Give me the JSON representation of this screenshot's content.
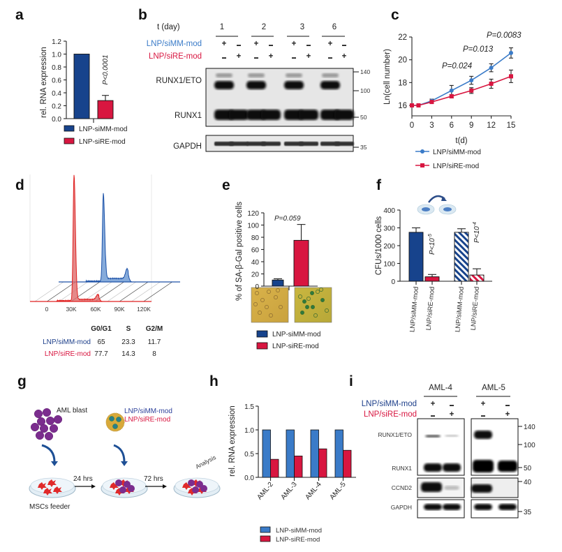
{
  "panel_labels": {
    "a": "a",
    "b": "b",
    "c": "c",
    "d": "d",
    "e": "e",
    "f": "f",
    "g": "g",
    "h": "h",
    "i": "i"
  },
  "colors": {
    "siMM_dark": "#17438c",
    "siMM_light": "#3a7bc8",
    "siRE": "#d81640"
  },
  "chart_data": [
    {
      "panel": "a",
      "type": "bar",
      "categories": [
        "LNP-siMM-mod",
        "LNP-siRE-mod"
      ],
      "values": [
        1.0,
        0.28
      ],
      "errors": [
        0,
        0.08
      ],
      "ylabel": "rel. RNA expression",
      "ylim": [
        0,
        1.2
      ],
      "yticks": [
        "0.0",
        "0.2",
        "0.4",
        "0.6",
        "0.8",
        "1.0",
        "1.2"
      ],
      "annotation": "P<0.0001",
      "legend": [
        "LNP-siMM-mod",
        "LNP-siRE-mod"
      ],
      "legend_placement": "bottom"
    },
    {
      "panel": "c",
      "type": "line",
      "x": [
        0,
        1,
        3,
        6,
        9,
        12,
        15
      ],
      "xticks": [
        "0",
        "3",
        "6",
        "9",
        "12",
        "15"
      ],
      "yticks": [
        "16",
        "18",
        "20",
        "22"
      ],
      "xlabel": "t(d)",
      "ylabel": "Ln(cell number)",
      "ylim": [
        15.1,
        22
      ],
      "xlim": [
        0,
        15
      ],
      "series": [
        {
          "name": "LNP/siMM-mod",
          "values": [
            16.0,
            16.0,
            16.4,
            17.3,
            18.2,
            19.3,
            20.6
          ],
          "errors": [
            0.05,
            0.05,
            0.15,
            0.45,
            0.35,
            0.35,
            0.45
          ]
        },
        {
          "name": "LNP/siRE-mod",
          "values": [
            16.0,
            16.0,
            16.3,
            16.8,
            17.3,
            17.9,
            18.55
          ],
          "errors": [
            0.05,
            0.05,
            0.1,
            0.15,
            0.25,
            0.4,
            0.55
          ]
        }
      ],
      "annotations": [
        "P=0.024",
        "P=0.013",
        "P=0.0083"
      ],
      "legend_placement": "bottom"
    },
    {
      "panel": "e",
      "type": "bar",
      "categories": [
        "LNP-siMM-mod",
        "LNP-siRE-mod"
      ],
      "values": [
        10,
        75
      ],
      "errors": [
        2,
        26
      ],
      "ylabel": "% of SA-β-Gal positive cells",
      "ylim": [
        0,
        120
      ],
      "yticks": [
        "0",
        "20",
        "40",
        "60",
        "80",
        "100",
        "120"
      ],
      "annotation": "P=0.059",
      "legend": [
        "LNP-siMM-mod",
        "LNP-siRE-mod"
      ],
      "legend_placement": "bottom"
    },
    {
      "panel": "f",
      "type": "bar",
      "categories": [
        "LNP/siMM-mod",
        "LNP/siRE-mod",
        "LNP/siMM-mod",
        "LNP/siRE-mod"
      ],
      "values": [
        275,
        25,
        275,
        35
      ],
      "errors": [
        25,
        13,
        20,
        35
      ],
      "hatched": [
        false,
        false,
        true,
        true
      ],
      "ylabel": "CFUs/1000 cells",
      "ylim": [
        0,
        400
      ],
      "yticks": [
        "0",
        "100",
        "200",
        "300",
        "400"
      ],
      "annotations": [
        {
          "base": "P<10",
          "exp": "-5"
        },
        {
          "base": "P<10",
          "exp": "-4"
        }
      ]
    },
    {
      "panel": "h",
      "type": "bar",
      "categories": [
        "AML-2",
        "AML-3",
        "AML-4",
        "AML-5"
      ],
      "series": [
        {
          "name": "LNP-siMM-mod",
          "values": [
            1.0,
            1.0,
            1.0,
            1.0
          ]
        },
        {
          "name": "LNP-siRE-mod",
          "values": [
            0.38,
            0.45,
            0.6,
            0.57
          ]
        }
      ],
      "ylabel": "rel. RNA expression",
      "ylim": [
        0,
        1.5
      ],
      "yticks": [
        "0.0",
        "0.5",
        "1.0",
        "1.5"
      ],
      "legend_placement": "bottom"
    }
  ],
  "panel_b": {
    "time_label": "t (day)",
    "days": [
      "1",
      "2",
      "3",
      "6"
    ],
    "row_labels": [
      "LNP/siMM-mod",
      "LNP/siRE-mod"
    ],
    "siMM_signs": [
      "+",
      "-",
      "+",
      "-",
      "+",
      "-",
      "+",
      "-"
    ],
    "siRE_signs": [
      "-",
      "+",
      "-",
      "+",
      "-",
      "+",
      "-",
      "+"
    ],
    "bands": [
      "RUNX1/ETO",
      "RUNX1",
      "GAPDH"
    ],
    "mw": [
      "140",
      "100",
      "50",
      "35"
    ]
  },
  "panel_d": {
    "xticks": [
      "0",
      "30K",
      "60K",
      "90K",
      "120K"
    ],
    "table": {
      "headers": [
        "G0/G1",
        "S",
        "G2/M"
      ],
      "rows": [
        {
          "label": "LNP/siMM-mod",
          "values": [
            "65",
            "23.3",
            "11.7"
          ]
        },
        {
          "label": "LNP/siRE-mod",
          "values": [
            "77.7",
            "14.3",
            "8"
          ]
        }
      ]
    }
  },
  "panel_g": {
    "aml_blast": "AML blast",
    "lnp_mm": "LNP/siMM-mod",
    "lnp_re": "LNP/siRE-mod",
    "step1": "24 hrs",
    "step2": "72 hrs",
    "feeder": "MSCs feeder",
    "analysis": "Analysis"
  },
  "panel_i": {
    "samples": [
      "AML-4",
      "AML-5"
    ],
    "row_labels": [
      "LNP/siMM-mod",
      "LNP/siRE-mod"
    ],
    "siMM_signs": [
      "+",
      "-",
      "+",
      "-"
    ],
    "siRE_signs": [
      "-",
      "+",
      "-",
      "+"
    ],
    "bands": [
      "RUNX1/ETO",
      "RUNX1",
      "CCND2",
      "GAPDH"
    ],
    "mw": [
      "140",
      "100",
      "50",
      "40",
      "35"
    ]
  }
}
